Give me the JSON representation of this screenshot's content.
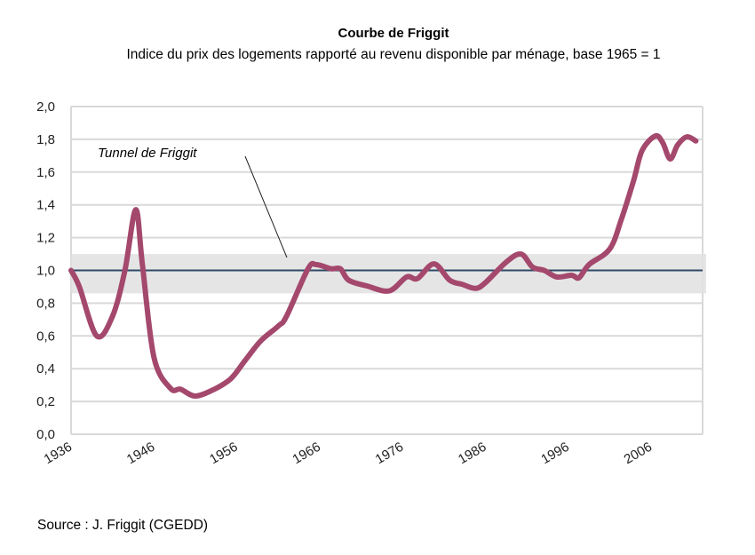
{
  "chart_data": {
    "type": "line",
    "title": "Courbe de Friggit",
    "subtitle": "Indice du prix des logements rapporté au revenu disponible par ménage,  base 1965 = 1",
    "xlabel": "",
    "ylabel": "",
    "xlim": [
      1936,
      2012
    ],
    "ylim": [
      0,
      2.0
    ],
    "x_ticks": [
      "1936",
      "1946",
      "1956",
      "1966",
      "1976",
      "1986",
      "1996",
      "2006"
    ],
    "y_ticks": [
      "0,0",
      "0,2",
      "0,4",
      "0,6",
      "0,8",
      "1,0",
      "1,2",
      "1,4",
      "1,6",
      "1,8",
      "2,0"
    ],
    "grid": true,
    "reference_line": 1.0,
    "tunnel_band": [
      0.86,
      1.1
    ],
    "annotation": "Tunnel de Friggit",
    "source": "Source : J. Friggit (CGEDD)",
    "colors": {
      "series": "#a4486d",
      "band": "#e0e0e0",
      "reference": "#2e4a66",
      "grid": "#d9d9d9"
    },
    "series": [
      {
        "x": [
          1936,
          1937,
          1939.1,
          1941,
          1942.5,
          1943.8,
          1944.6,
          1946,
          1948,
          1949.2,
          1951,
          1953.3,
          1955.3,
          1957,
          1958.9,
          1961,
          1962,
          1964.6,
          1965.6,
          1967.4,
          1968.5,
          1969.5,
          1971.7,
          1974.4,
          1976.5,
          1977.8,
          1979.8,
          1981.7,
          1983.2,
          1984.8,
          1986,
          1988.5,
          1990.3,
          1991.7,
          1993.1,
          1994.6,
          1996.4,
          1997.3,
          1998.5,
          2001,
          2002.4,
          2003.9,
          2004.9,
          2006.5,
          2007.4,
          2008.3,
          2009.2,
          2010.3,
          2011.4
        ],
        "y": [
          1.0,
          0.9,
          0.6,
          0.72,
          1.0,
          1.37,
          1.04,
          0.47,
          0.28,
          0.275,
          0.233,
          0.275,
          0.34,
          0.45,
          0.57,
          0.66,
          0.72,
          1.01,
          1.035,
          1.01,
          1.01,
          0.94,
          0.905,
          0.875,
          0.96,
          0.95,
          1.04,
          0.94,
          0.915,
          0.89,
          0.925,
          1.05,
          1.1,
          1.02,
          1.0,
          0.96,
          0.97,
          0.955,
          1.035,
          1.13,
          1.31,
          1.55,
          1.73,
          1.82,
          1.78,
          1.68,
          1.765,
          1.815,
          1.79
        ]
      }
    ]
  }
}
